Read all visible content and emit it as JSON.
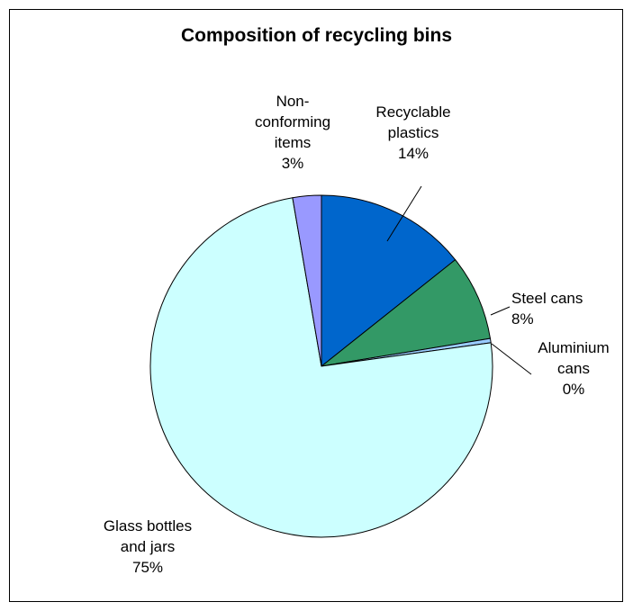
{
  "chart_data": {
    "type": "pie",
    "title": "Composition of recycling bins",
    "slices": [
      {
        "label_lines": [
          "Recyclable",
          "plastics",
          "14%"
        ],
        "value": 14.3,
        "color": "#0066cc"
      },
      {
        "label_lines": [
          "Steel cans",
          "8%"
        ],
        "value": 8.1,
        "color": "#339966"
      },
      {
        "label_lines": [
          "Aluminium",
          "cans",
          "0%"
        ],
        "value": 0.4,
        "color": "#99ccff"
      },
      {
        "label_lines": [
          "Glass bottles",
          "and jars",
          "75%"
        ],
        "value": 74.5,
        "color": "#ccffff"
      },
      {
        "label_lines": [
          "Non-",
          "conforming",
          "items",
          "3%"
        ],
        "value": 2.7,
        "color": "#9999ff"
      }
    ],
    "legend": "none",
    "start_angle": "12 o'clock, clockwise"
  }
}
